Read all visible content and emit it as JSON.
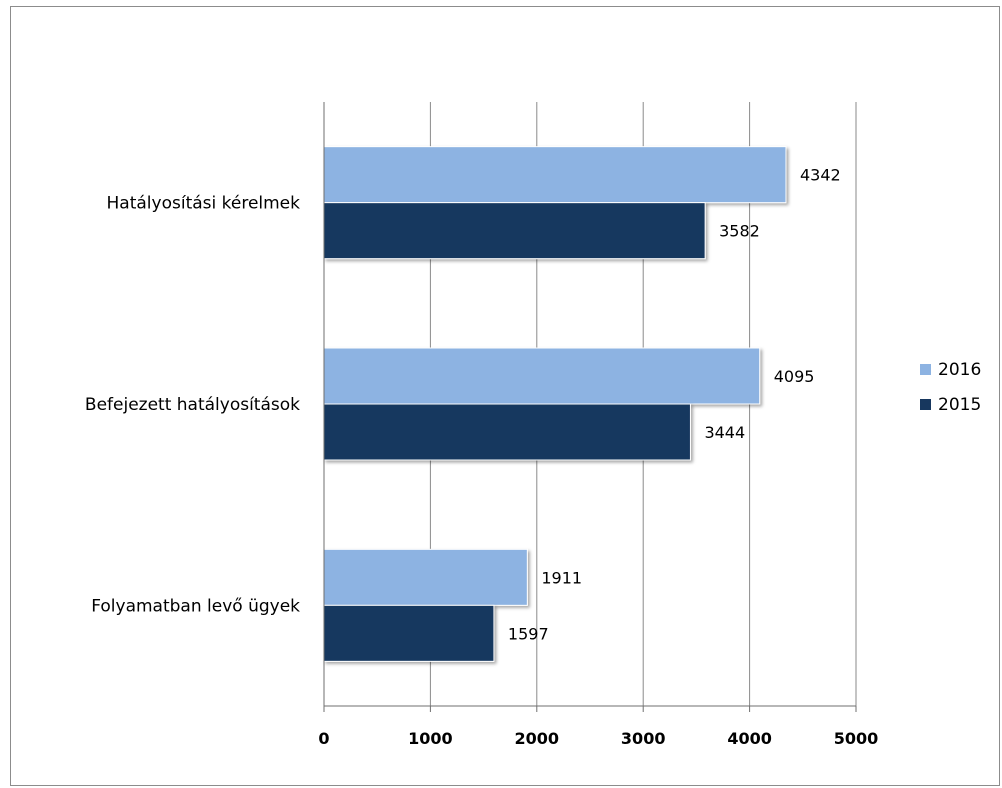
{
  "chart_data": {
    "type": "bar",
    "orientation": "horizontal",
    "categories": [
      "Hatályosítási kérelmek",
      "Befejezett hatályosítások",
      "Folyamatban levő ügyek"
    ],
    "series": [
      {
        "name": "2016",
        "values": [
          4342,
          4095,
          1911
        ],
        "color": "#8db3e2"
      },
      {
        "name": "2015",
        "values": [
          3582,
          3444,
          1597
        ],
        "color": "#17375e"
      }
    ],
    "xticks": [
      0,
      1000,
      2000,
      3000,
      4000,
      5000
    ],
    "xlim": [
      0,
      5000
    ],
    "grid": "vertical",
    "legend_position": "right"
  }
}
